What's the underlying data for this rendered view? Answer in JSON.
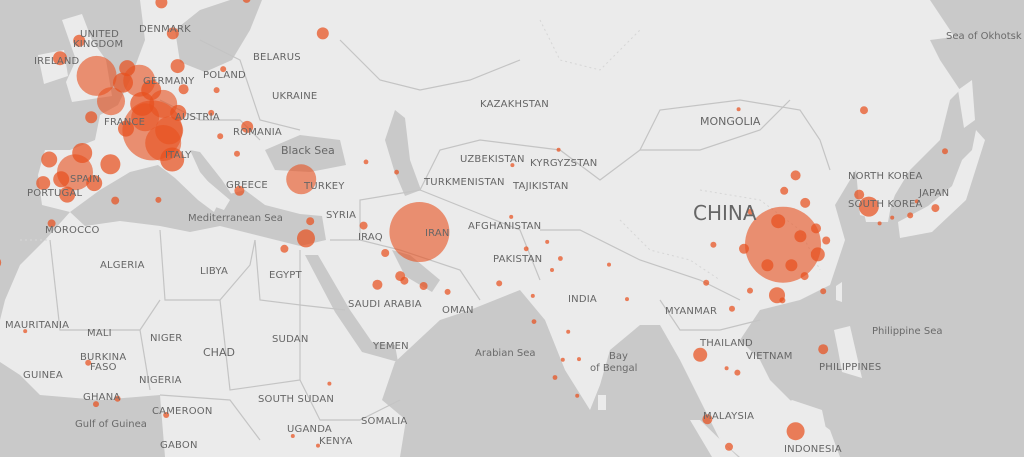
{
  "map": {
    "colors": {
      "ocean": "#c9c9c9",
      "land": "#ebebeb",
      "bubble": "#e8501e"
    },
    "labels": {
      "united_kingdom_1": "UNITED",
      "united_kingdom_2": "KINGDOM",
      "ireland": "IRELAND",
      "denmark": "DENMARK",
      "belarus": "BELARUS",
      "poland": "POLAND",
      "germany": "GERMANY",
      "ukraine": "UKRAINE",
      "france": "FRANCE",
      "austria": "AUSTRIA",
      "romania": "ROMANIA",
      "black_sea": "Black Sea",
      "italy": "ITALY",
      "spain": "SPAIN",
      "portugal": "PORTUGAL",
      "greece": "GREECE",
      "turkey": "TURKEY",
      "mediterranean_sea": "Mediterranean Sea",
      "syria": "SYRIA",
      "morocco": "MOROCCO",
      "iraq": "IRAQ",
      "iran": "IRAN",
      "kazakhstan": "KAZAKHSTAN",
      "uzbekistan": "UZBEKISTAN",
      "kyrgyzstan": "KYRGYZSTAN",
      "turkmenistan": "TURKMENISTAN",
      "tajikistan": "TAJIKISTAN",
      "afghanistan": "AFGHANISTAN",
      "pakistan": "PAKISTAN",
      "mongolia": "MONGOLIA",
      "china": "CHINA",
      "north_korea": "NORTH KOREA",
      "south_korea": "SOUTH KOREA",
      "japan": "JAPAN",
      "sea_of_okhotsk": "Sea of Okhotsk",
      "algeria": "ALGERIA",
      "libya": "LIBYA",
      "egypt": "EGYPT",
      "saudi_arabia": "SAUDI ARABIA",
      "oman": "OMAN",
      "india": "INDIA",
      "myanmar": "MYANMAR",
      "mauritania": "MAURITANIA",
      "mali": "MALI",
      "niger": "NIGER",
      "chad": "CHAD",
      "sudan": "SUDAN",
      "yemen": "YEMEN",
      "arabian_sea": "Arabian Sea",
      "bay_1": "Bay",
      "bay_2": "of Bengal",
      "thailand": "THAILAND",
      "vietnam": "VIETNAM",
      "philippine_sea": "Philippine Sea",
      "philippines": "PHILIPPINES",
      "burkina_1": "BURKINA",
      "burkina_2": "FASO",
      "guinea": "GUINEA",
      "nigeria": "NIGERIA",
      "ghana": "GHANA",
      "cameroon": "CAMEROON",
      "south_sudan": "SOUTH SUDAN",
      "gulf_of_guinea": "Gulf of Guinea",
      "uganda": "UGANDA",
      "kenya": "KENYA",
      "somalia": "SOMALIA",
      "gabon": "GABON",
      "malaysia": "MALAYSIA",
      "indonesia": "INDONESIA"
    },
    "markers": [
      {
        "lat": 30.6,
        "lon": 114.3,
        "value": 1444
      },
      {
        "lat": 23.1,
        "lon": 113.3,
        "value": 64
      },
      {
        "lat": 29.2,
        "lon": 120.1,
        "value": 49
      },
      {
        "lat": 33.9,
        "lon": 113.5,
        "value": 49
      },
      {
        "lat": 27.6,
        "lon": 111.7,
        "value": 36
      },
      {
        "lat": 31.8,
        "lon": 117.2,
        "value": 36
      },
      {
        "lat": 27.6,
        "lon": 115.7,
        "value": 36
      },
      {
        "lat": 36.4,
        "lon": 118,
        "value": 25
      },
      {
        "lat": 32.9,
        "lon": 119.8,
        "value": 25
      },
      {
        "lat": 30,
        "lon": 107.8,
        "value": 25
      },
      {
        "lat": 30.6,
        "lon": 102.7,
        "value": 9
      },
      {
        "lat": 40,
        "lon": 116.4,
        "value": 25
      },
      {
        "lat": 47.8,
        "lon": 127.8,
        "value": 16
      },
      {
        "lat": 31.2,
        "lon": 121.5,
        "value": 16
      },
      {
        "lat": 26,
        "lon": 117.9,
        "value": 16
      },
      {
        "lat": 23.7,
        "lon": 121,
        "value": 9
      },
      {
        "lat": 22.3,
        "lon": 114.2,
        "value": 9
      },
      {
        "lat": 23.8,
        "lon": 108.8,
        "value": 9
      },
      {
        "lat": 25,
        "lon": 101.5,
        "value": 9
      },
      {
        "lat": 38,
        "lon": 114.5,
        "value": 16
      },
      {
        "lat": 35.2,
        "lon": 108.9,
        "value": 9
      },
      {
        "lat": 35.9,
        "lon": 128.6,
        "value": 100
      },
      {
        "lat": 37.5,
        "lon": 127,
        "value": 25
      },
      {
        "lat": 35.7,
        "lon": 139.7,
        "value": 16
      },
      {
        "lat": 34.7,
        "lon": 135.5,
        "value": 9
      },
      {
        "lat": 43,
        "lon": 141.3,
        "value": 9
      },
      {
        "lat": 33.6,
        "lon": 130.4,
        "value": 4
      },
      {
        "lat": 34.4,
        "lon": 132.5,
        "value": 4
      },
      {
        "lat": 36.6,
        "lon": 136.6,
        "value": 4
      },
      {
        "lat": 32.4,
        "lon": 53.7,
        "value": 900
      },
      {
        "lat": 45.5,
        "lon": 9.2,
        "value": 900
      },
      {
        "lat": 44,
        "lon": 11,
        "value": 324
      },
      {
        "lat": 42,
        "lon": 12.5,
        "value": 144
      },
      {
        "lat": 45.5,
        "lon": 12,
        "value": 196
      },
      {
        "lat": 40.4,
        "lon": -3.7,
        "value": 324
      },
      {
        "lat": 41.4,
        "lon": 2.2,
        "value": 100
      },
      {
        "lat": 42.8,
        "lon": -2.5,
        "value": 100
      },
      {
        "lat": 39.5,
        "lon": -6,
        "value": 64
      },
      {
        "lat": 37.5,
        "lon": -5,
        "value": 64
      },
      {
        "lat": 39,
        "lon": -0.5,
        "value": 64
      },
      {
        "lat": 42,
        "lon": -8,
        "value": 64
      },
      {
        "lat": 48.8,
        "lon": 2.3,
        "value": 196
      },
      {
        "lat": 48.5,
        "lon": 7.5,
        "value": 144
      },
      {
        "lat": 45.7,
        "lon": 4.8,
        "value": 64
      },
      {
        "lat": 47,
        "lon": -1,
        "value": 36
      },
      {
        "lat": 51,
        "lon": 7,
        "value": 256
      },
      {
        "lat": 52.5,
        "lon": 13.4,
        "value": 49
      },
      {
        "lat": 48.5,
        "lon": 11,
        "value": 196
      },
      {
        "lat": 50,
        "lon": 9,
        "value": 100
      },
      {
        "lat": 51.5,
        "lon": -0.1,
        "value": 400
      },
      {
        "lat": 55,
        "lon": -3,
        "value": 36
      },
      {
        "lat": 53.3,
        "lon": -6.2,
        "value": 49
      },
      {
        "lat": 47,
        "lon": 8,
        "value": 196
      },
      {
        "lat": 52.3,
        "lon": 5,
        "value": 64
      },
      {
        "lat": 50.8,
        "lon": 4.3,
        "value": 100
      },
      {
        "lat": 47.5,
        "lon": 13.5,
        "value": 64
      },
      {
        "lat": 39,
        "lon": -9,
        "value": 49
      },
      {
        "lat": 39.5,
        "lon": 34,
        "value": 225
      },
      {
        "lat": 31.5,
        "lon": 34.8,
        "value": 81
      },
      {
        "lat": 24.7,
        "lon": 46.7,
        "value": 25
      },
      {
        "lat": 25.3,
        "lon": 51.2,
        "value": 16
      },
      {
        "lat": 24.5,
        "lon": 54.4,
        "value": 16
      },
      {
        "lat": 30,
        "lon": 31.2,
        "value": 16
      },
      {
        "lat": 36.7,
        "lon": 3,
        "value": 16
      },
      {
        "lat": 33.6,
        "lon": -7.6,
        "value": 16
      },
      {
        "lat": 13.7,
        "lon": 100.5,
        "value": 49
      },
      {
        "lat": 14.6,
        "lon": 121,
        "value": 25
      },
      {
        "lat": 3.1,
        "lon": 101.7,
        "value": 25
      },
      {
        "lat": 1.1,
        "lon": 116.4,
        "value": 81
      },
      {
        "lat": -1.5,
        "lon": 105.3,
        "value": 16
      },
      {
        "lat": 55.7,
        "lon": 37.6,
        "value": 36
      },
      {
        "lat": 45.9,
        "lon": 25,
        "value": 36
      },
      {
        "lat": 38,
        "lon": 23.7,
        "value": 25
      },
      {
        "lat": 28,
        "lon": -17,
        "value": 36
      },
      {
        "lat": 28.6,
        "lon": 77.2,
        "value": 6
      },
      {
        "lat": 19,
        "lon": 72.8,
        "value": 6
      },
      {
        "lat": 12.9,
        "lon": 77.6,
        "value": 4
      },
      {
        "lat": 13,
        "lon": 80.3,
        "value": 4
      },
      {
        "lat": 22.5,
        "lon": 88.3,
        "value": 4
      },
      {
        "lat": 10,
        "lon": 76.3,
        "value": 6
      },
      {
        "lat": 17.4,
        "lon": 78.5,
        "value": 4
      },
      {
        "lat": 26.9,
        "lon": 75.8,
        "value": 4
      },
      {
        "lat": 23,
        "lon": 72.6,
        "value": 4
      },
      {
        "lat": 31,
        "lon": 75,
        "value": 4
      },
      {
        "lat": 24.9,
        "lon": 67,
        "value": 9
      },
      {
        "lat": 30,
        "lon": 71.5,
        "value": 6
      },
      {
        "lat": 33.9,
        "lon": 35.5,
        "value": 16
      },
      {
        "lat": 33.3,
        "lon": 44.4,
        "value": 16
      },
      {
        "lat": 29.4,
        "lon": 48,
        "value": 16
      },
      {
        "lat": 26,
        "lon": 50.5,
        "value": 25
      },
      {
        "lat": 23.6,
        "lon": 58.4,
        "value": 9
      },
      {
        "lat": 34.5,
        "lon": 69,
        "value": 4
      },
      {
        "lat": 43.2,
        "lon": 76.9,
        "value": 4
      },
      {
        "lat": 21,
        "lon": 105.8,
        "value": 9
      },
      {
        "lat": 10.8,
        "lon": 106.7,
        "value": 9
      },
      {
        "lat": 11.5,
        "lon": 104.9,
        "value": 4
      },
      {
        "lat": 7,
        "lon": 80,
        "value": 4
      },
      {
        "lat": 14.7,
        "lon": -17.4,
        "value": 9
      },
      {
        "lat": 6.5,
        "lon": 3.4,
        "value": 9
      },
      {
        "lat": 5.6,
        "lon": -0.2,
        "value": 9
      },
      {
        "lat": 3.8,
        "lon": 11.5,
        "value": 9
      },
      {
        "lat": -1.3,
        "lon": 36.8,
        "value": 4
      },
      {
        "lat": 59.3,
        "lon": 18,
        "value": 25
      },
      {
        "lat": 58.5,
        "lon": 10.7,
        "value": 36
      },
      {
        "lat": 55.7,
        "lon": 12.6,
        "value": 36
      },
      {
        "lat": 58.8,
        "lon": 24.9,
        "value": 16
      },
      {
        "lat": 52.2,
        "lon": 21,
        "value": 9
      },
      {
        "lat": 50,
        "lon": 19.9,
        "value": 9
      },
      {
        "lat": 50.1,
        "lon": 14.4,
        "value": 25
      },
      {
        "lat": 47.5,
        "lon": 19,
        "value": 9
      },
      {
        "lat": 44.8,
        "lon": 20.5,
        "value": 9
      },
      {
        "lat": 42.7,
        "lon": 23.3,
        "value": 9
      },
      {
        "lat": 41.7,
        "lon": 44.8,
        "value": 6
      },
      {
        "lat": 40.4,
        "lon": 49.9,
        "value": 6
      },
      {
        "lat": 41.3,
        "lon": 69.2,
        "value": 4
      },
      {
        "lat": 27.7,
        "lon": 85.3,
        "value": 4
      },
      {
        "lat": 47.9,
        "lon": 106.9,
        "value": 4
      },
      {
        "lat": 12.4,
        "lon": -1.5,
        "value": 9
      },
      {
        "lat": 36.8,
        "lon": 10.2,
        "value": 9
      },
      {
        "lat": 9,
        "lon": 38.7,
        "value": 4
      },
      {
        "lat": 0.3,
        "lon": 32.6,
        "value": 4
      },
      {
        "lat": 17.5,
        "lon": -12,
        "value": 4
      }
    ]
  }
}
